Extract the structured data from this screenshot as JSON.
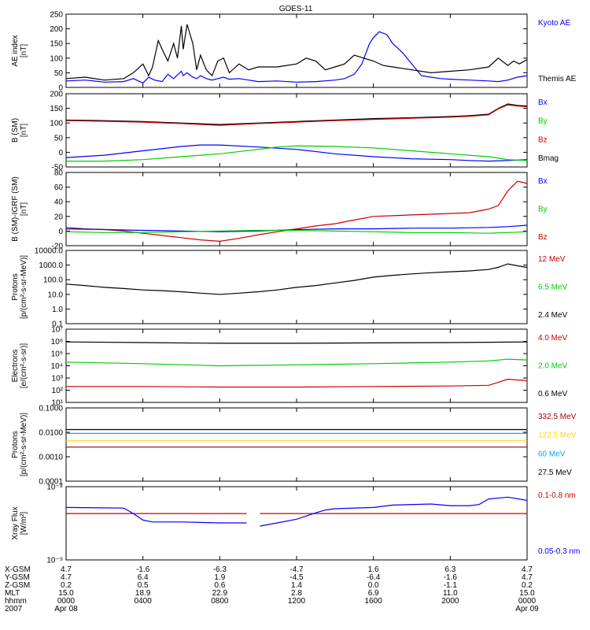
{
  "title": "GOES-11",
  "chart_data": [
    {
      "type": "line",
      "id": "ae",
      "ylabel": "AE index\n[nT]",
      "ylim": [
        0,
        250
      ],
      "yticks": [
        0,
        50,
        100,
        150,
        200,
        250
      ],
      "yticklabels": [
        "0",
        "50",
        "100",
        "150",
        "200",
        "250"
      ],
      "legend": [
        {
          "name": "Kyoto AE",
          "color": "#0000ff"
        },
        {
          "name": "Themis AE",
          "color": "#000000"
        }
      ],
      "series": [
        {
          "name": "Kyoto AE",
          "color": "#0000ff",
          "x": [
            0,
            1,
            2,
            3,
            3.5,
            4,
            4.3,
            4.6,
            5,
            5.3,
            5.6,
            6,
            6.1,
            6.3,
            6.6,
            6.8,
            7,
            7.3,
            7.6,
            7.9,
            8.2,
            8.5,
            9,
            9.5,
            10,
            11,
            12,
            13,
            14,
            14.5,
            15,
            15.4,
            15.8,
            16,
            16.3,
            16.7,
            17,
            17.5,
            18,
            18.5,
            19,
            19.5,
            20,
            21,
            22,
            22.5,
            23,
            23.5,
            24
          ],
          "y": [
            22,
            25,
            18,
            20,
            30,
            15,
            35,
            25,
            20,
            45,
            30,
            55,
            40,
            50,
            35,
            30,
            40,
            30,
            25,
            30,
            35,
            28,
            30,
            25,
            20,
            22,
            18,
            20,
            25,
            30,
            45,
            80,
            150,
            170,
            190,
            180,
            150,
            120,
            80,
            40,
            35,
            30,
            28,
            25,
            22,
            20,
            25,
            35,
            40
          ]
        },
        {
          "name": "Themis AE",
          "color": "#000000",
          "x": [
            0,
            1,
            2,
            3,
            3.5,
            4,
            4.3,
            4.5,
            4.8,
            5,
            5.3,
            5.6,
            5.8,
            6,
            6.1,
            6.3,
            6.6,
            6.8,
            7,
            7.3,
            7.6,
            7.9,
            8.2,
            8.5,
            9,
            9.5,
            10,
            11,
            12,
            12.5,
            13,
            13.5,
            14,
            14.5,
            15,
            15.5,
            16,
            16.5,
            17,
            17.5,
            18,
            19,
            20,
            21,
            22,
            22.5,
            23,
            23.3,
            23.6,
            24
          ],
          "y": [
            30,
            35,
            25,
            30,
            50,
            80,
            40,
            70,
            160,
            130,
            90,
            150,
            100,
            210,
            130,
            215,
            150,
            60,
            110,
            60,
            40,
            90,
            100,
            50,
            80,
            60,
            70,
            70,
            80,
            100,
            90,
            60,
            70,
            80,
            110,
            100,
            90,
            75,
            70,
            65,
            60,
            50,
            55,
            60,
            70,
            100,
            75,
            90,
            80,
            95
          ]
        }
      ]
    },
    {
      "type": "line",
      "id": "bsm",
      "ylabel": "B (SM)\n[nT]",
      "ylim": [
        -50,
        200
      ],
      "yticks": [
        -50,
        0,
        50,
        100,
        150,
        200
      ],
      "yticklabels": [
        "-50",
        "0",
        "50",
        "100",
        "150",
        "200"
      ],
      "legend": [
        {
          "name": "Bx",
          "color": "#0000ff"
        },
        {
          "name": "By",
          "color": "#00cc00"
        },
        {
          "name": "Bz",
          "color": "#cc0000"
        },
        {
          "name": "Bmag",
          "color": "#000000"
        }
      ],
      "series": [
        {
          "name": "Bmag",
          "color": "#000000",
          "x": [
            0,
            2,
            4,
            6,
            8,
            10,
            12,
            14,
            16,
            18,
            20,
            21,
            22,
            22.5,
            23,
            23.5,
            24
          ],
          "y": [
            110,
            108,
            105,
            100,
            95,
            100,
            105,
            110,
            115,
            118,
            122,
            125,
            130,
            150,
            165,
            160,
            158
          ]
        },
        {
          "name": "Bz",
          "color": "#cc0000",
          "x": [
            0,
            2,
            4,
            6,
            8,
            10,
            12,
            14,
            16,
            18,
            20,
            21,
            22,
            22.5,
            23,
            23.5,
            24
          ],
          "y": [
            108,
            106,
            103,
            98,
            92,
            98,
            103,
            108,
            112,
            116,
            120,
            123,
            128,
            148,
            162,
            158,
            155
          ]
        },
        {
          "name": "Bx",
          "color": "#0000ff",
          "x": [
            0,
            2,
            4,
            6,
            7,
            8,
            10,
            12,
            14,
            16,
            18,
            20,
            21,
            22,
            23,
            24
          ],
          "y": [
            -18,
            -10,
            5,
            20,
            25,
            25,
            18,
            10,
            -5,
            -15,
            -22,
            -25,
            -28,
            -30,
            -28,
            -25
          ]
        },
        {
          "name": "By",
          "color": "#00cc00",
          "x": [
            0,
            2,
            4,
            6,
            8,
            10,
            11,
            12,
            14,
            16,
            18,
            20,
            22,
            23,
            24
          ],
          "y": [
            -30,
            -30,
            -25,
            -15,
            -5,
            10,
            18,
            22,
            20,
            15,
            5,
            -5,
            -15,
            -25,
            -28
          ]
        }
      ]
    },
    {
      "type": "line",
      "id": "bigrf",
      "ylabel": "B (SM)-IGRF (SM)\n[nT]",
      "ylim": [
        -20,
        80
      ],
      "yticks": [
        -20,
        0,
        20,
        40,
        60,
        80
      ],
      "yticklabels": [
        "-20",
        "0",
        "20",
        "40",
        "60",
        "80"
      ],
      "legend": [
        {
          "name": "Bx",
          "color": "#0000ff"
        },
        {
          "name": "By",
          "color": "#00cc00"
        },
        {
          "name": "Bz",
          "color": "#cc0000"
        }
      ],
      "series": [
        {
          "name": "Bz",
          "color": "#cc0000",
          "x": [
            0,
            1,
            2,
            3,
            4,
            5,
            6,
            7,
            8,
            9,
            10,
            11,
            12,
            13,
            14,
            15,
            16,
            17,
            18,
            19,
            20,
            21,
            22,
            22.5,
            23,
            23.5,
            24
          ],
          "y": [
            5,
            3,
            2,
            0,
            -3,
            -6,
            -9,
            -12,
            -14,
            -10,
            -5,
            -1,
            3,
            7,
            10,
            15,
            20,
            21,
            22,
            23,
            24,
            25,
            30,
            35,
            55,
            68,
            65
          ]
        },
        {
          "name": "Bx",
          "color": "#0000ff",
          "x": [
            0,
            2,
            4,
            6,
            8,
            10,
            12,
            14,
            16,
            18,
            20,
            22,
            23,
            24
          ],
          "y": [
            3,
            2,
            1,
            0,
            -1,
            0,
            2,
            3,
            3,
            4,
            4,
            5,
            6,
            8
          ]
        },
        {
          "name": "By",
          "color": "#00cc00",
          "x": [
            0,
            2,
            4,
            6,
            8,
            10,
            12,
            14,
            16,
            18,
            20,
            22,
            23,
            24
          ],
          "y": [
            -1,
            -2,
            -2,
            -1,
            0,
            1,
            1,
            0,
            -1,
            -2,
            -2,
            -3,
            -2,
            -1
          ]
        }
      ]
    },
    {
      "type": "line",
      "id": "protons_low",
      "ylabel": "Protons\n[p/(cm²-s-sr-MeV)]",
      "yscale": "log",
      "ylim": [
        0.1,
        10000
      ],
      "yticks": [
        0.1,
        1,
        10,
        100,
        1000,
        10000
      ],
      "yticklabels": [
        "0.1",
        "1.0",
        "10.0",
        "100.0",
        "1000.0",
        "10000.0"
      ],
      "legend": [
        {
          "name": "12 MeV",
          "color": "#cc0000"
        },
        {
          "name": "6.5 MeV",
          "color": "#00cc00"
        },
        {
          "name": "2.4 MeV",
          "color": "#000000"
        }
      ],
      "series": [
        {
          "name": "2.4 MeV",
          "color": "#000000",
          "x": [
            0,
            1,
            2,
            3,
            4,
            5,
            6,
            7,
            8,
            9,
            10,
            11,
            12,
            13,
            14,
            15,
            16,
            17,
            18,
            19,
            20,
            21,
            22,
            22.5,
            23,
            23.5,
            24
          ],
          "y": [
            50,
            40,
            30,
            25,
            20,
            18,
            15,
            12,
            10,
            12,
            15,
            20,
            30,
            40,
            60,
            90,
            150,
            200,
            250,
            300,
            350,
            400,
            500,
            700,
            1200,
            900,
            700
          ]
        }
      ]
    },
    {
      "type": "line",
      "id": "electrons",
      "ylabel": "Electrons\n[e/(cm²-s-sr)]",
      "yscale": "log",
      "ylim": [
        10,
        10000000
      ],
      "yticks": [
        10,
        100,
        1000,
        10000,
        100000,
        1000000,
        10000000
      ],
      "yticklabels": [
        "10¹",
        "10²",
        "10³",
        "10⁴",
        "10⁵",
        "10⁶",
        "10⁷"
      ],
      "legend": [
        {
          "name": "4.0 MeV",
          "color": "#cc0000"
        },
        {
          "name": "2.0 MeV",
          "color": "#00cc00"
        },
        {
          "name": "0.6 MeV",
          "color": "#000000"
        }
      ],
      "series": [
        {
          "name": "0.6 MeV",
          "color": "#000000",
          "x": [
            0,
            4,
            8,
            12,
            16,
            20,
            22,
            24
          ],
          "y": [
            900000,
            800000,
            700000,
            700000,
            750000,
            800000,
            850000,
            900000
          ]
        },
        {
          "name": "2.0 MeV",
          "color": "#00cc00",
          "x": [
            0,
            4,
            8,
            12,
            16,
            20,
            22,
            23,
            24
          ],
          "y": [
            20000,
            15000,
            10000,
            12000,
            15000,
            20000,
            25000,
            35000,
            30000
          ]
        },
        {
          "name": "4.0 MeV",
          "color": "#cc0000",
          "x": [
            0,
            4,
            8,
            12,
            16,
            20,
            22,
            23,
            24
          ],
          "y": [
            200,
            200,
            180,
            180,
            200,
            220,
            250,
            800,
            600
          ]
        }
      ]
    },
    {
      "type": "line",
      "id": "protons_high",
      "ylabel": "Protons\n[p/(cm²-s-sr-MeV)]",
      "yscale": "log",
      "ylim": [
        0.0001,
        0.1
      ],
      "yticks": [
        0.0001,
        0.001,
        0.01,
        0.1
      ],
      "yticklabels": [
        "0.0001",
        "0.0010",
        "0.0100",
        "0.1000"
      ],
      "legend": [
        {
          "name": "332.5 MeV",
          "color": "#990000"
        },
        {
          "name": "122.5 MeV",
          "color": "#ffd700"
        },
        {
          "name": "60 MeV",
          "color": "#00aaff"
        },
        {
          "name": "27.5 MeV",
          "color": "#000000"
        }
      ],
      "series": [
        {
          "name": "27.5 MeV",
          "color": "#000000",
          "x": [
            0,
            24
          ],
          "y": [
            0.013,
            0.013
          ]
        },
        {
          "name": "60 MeV",
          "color": "#00aaff",
          "x": [
            0,
            24
          ],
          "y": [
            0.009,
            0.009
          ]
        },
        {
          "name": "122.5 MeV",
          "color": "#ffd700",
          "x": [
            0,
            24
          ],
          "y": [
            0.0045,
            0.0045
          ]
        },
        {
          "name": "332.5 MeV",
          "color": "#990000",
          "x": [
            0,
            24
          ],
          "y": [
            0.0025,
            0.0025
          ]
        }
      ]
    },
    {
      "type": "line",
      "id": "xray",
      "ylabel": "Xray Flux\n[W/m²]",
      "yscale": "log",
      "ylim": [
        1e-09,
        1e-08
      ],
      "yticks": [
        1e-09,
        1e-08
      ],
      "yticklabels": [
        "10⁻⁹",
        "10⁻⁸"
      ],
      "legend": [
        {
          "name": "0.1-0.8 nm",
          "color": "#cc0000"
        },
        {
          "name": "0.05-0.3 nm",
          "color": "#0000ff"
        }
      ],
      "series": [
        {
          "name": "0.1-0.8 nm",
          "color": "#cc0000",
          "x": [
            0,
            9.4
          ],
          "y": [
            4.3e-09,
            4.3e-09
          ]
        },
        {
          "name": "0.1-0.8 nm",
          "color": "#cc0000",
          "x": [
            10.1,
            24
          ],
          "y": [
            4.3e-09,
            4.3e-09
          ]
        },
        {
          "name": "0.05-0.3 nm",
          "color": "#0000ff",
          "x": [
            0,
            3,
            3.5,
            4,
            4.5,
            6,
            8,
            9.4
          ],
          "y": [
            5.2e-09,
            5.1e-09,
            4.3e-09,
            3.5e-09,
            3.3e-09,
            3.3e-09,
            3.2e-09,
            3.2e-09
          ]
        },
        {
          "name": "0.05-0.3 nm",
          "color": "#0000ff",
          "x": [
            10.1,
            11,
            12,
            13,
            13.5,
            14,
            16,
            17,
            19,
            20,
            21,
            21.5,
            22,
            23,
            24
          ],
          "y": [
            2.9e-09,
            3.2e-09,
            3.6e-09,
            4.4e-09,
            4.8e-09,
            5e-09,
            5.2e-09,
            5.6e-09,
            5.8e-09,
            5.5e-09,
            5.5e-09,
            5.7e-09,
            6.8e-09,
            7.2e-09,
            6.5e-09
          ]
        }
      ]
    }
  ],
  "x_axis": {
    "xlim": [
      0,
      24
    ],
    "ticks": [
      0,
      4,
      8,
      12,
      16,
      20,
      24
    ],
    "row_labels": [
      "X-GSM",
      "Y-GSM",
      "Z-GSM",
      "MLT",
      "hhmm",
      "2007"
    ],
    "rows": [
      [
        "4.7",
        "-1.6",
        "-6.3",
        "-4.7",
        "1.6",
        "6.3",
        "4.7"
      ],
      [
        "4.7",
        "6.4",
        "1.9",
        "-4.5",
        "-6.4",
        "-1.6",
        "4.7"
      ],
      [
        "0.2",
        "0.5",
        "0.6",
        "1.4",
        "0.0",
        "-1.1",
        "0.2"
      ],
      [
        "15.0",
        "18.9",
        "22.9",
        "2.8",
        "6.9",
        "11.0",
        "15.0"
      ],
      [
        "0000",
        "0400",
        "0800",
        "1200",
        "1600",
        "2000",
        "0000"
      ],
      [
        "Apr 08",
        "",
        "",
        "",
        "",
        "",
        "Apr 09"
      ]
    ]
  }
}
